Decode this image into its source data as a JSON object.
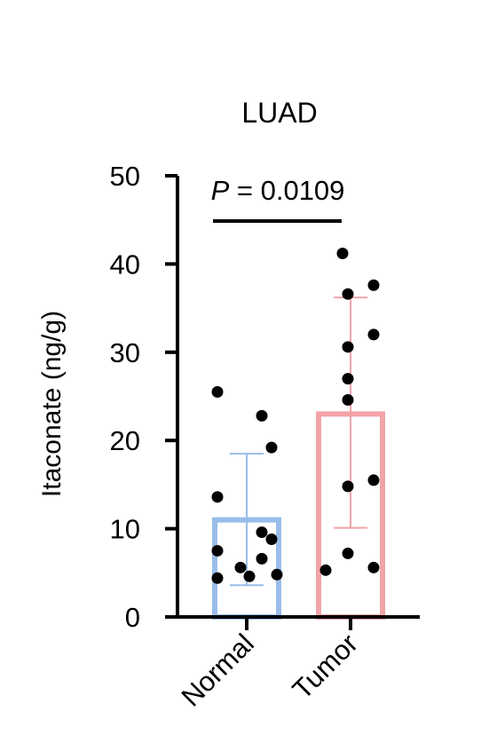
{
  "chart_data": {
    "type": "bar",
    "title": "LUAD",
    "ylabel": "Itaconate (ng/g)",
    "xlabel": "",
    "ylim": [
      0,
      50
    ],
    "yticks": [
      0,
      10,
      20,
      30,
      40,
      50
    ],
    "categories": [
      "Normal",
      "Tumor"
    ],
    "bars": [
      {
        "category": "Normal",
        "mean": 11.0,
        "sd_low": 3.6,
        "sd_high": 18.5,
        "color": "#99bde8",
        "points": [
          25.5,
          22.8,
          19.2,
          13.6,
          9.6,
          8.8,
          7.5,
          6.6,
          5.6,
          4.8,
          4.6,
          4.4
        ]
      },
      {
        "category": "Tumor",
        "mean": 23.0,
        "sd_low": 10.1,
        "sd_high": 36.2,
        "color": "#f2a4a8",
        "points": [
          41.2,
          37.6,
          36.6,
          32.0,
          30.6,
          27.0,
          24.6,
          15.5,
          14.8,
          7.2,
          5.6,
          5.3
        ]
      }
    ],
    "annotation": {
      "prefix": "P",
      "text": " = 0.0109"
    },
    "grid": false,
    "legend": "none"
  }
}
